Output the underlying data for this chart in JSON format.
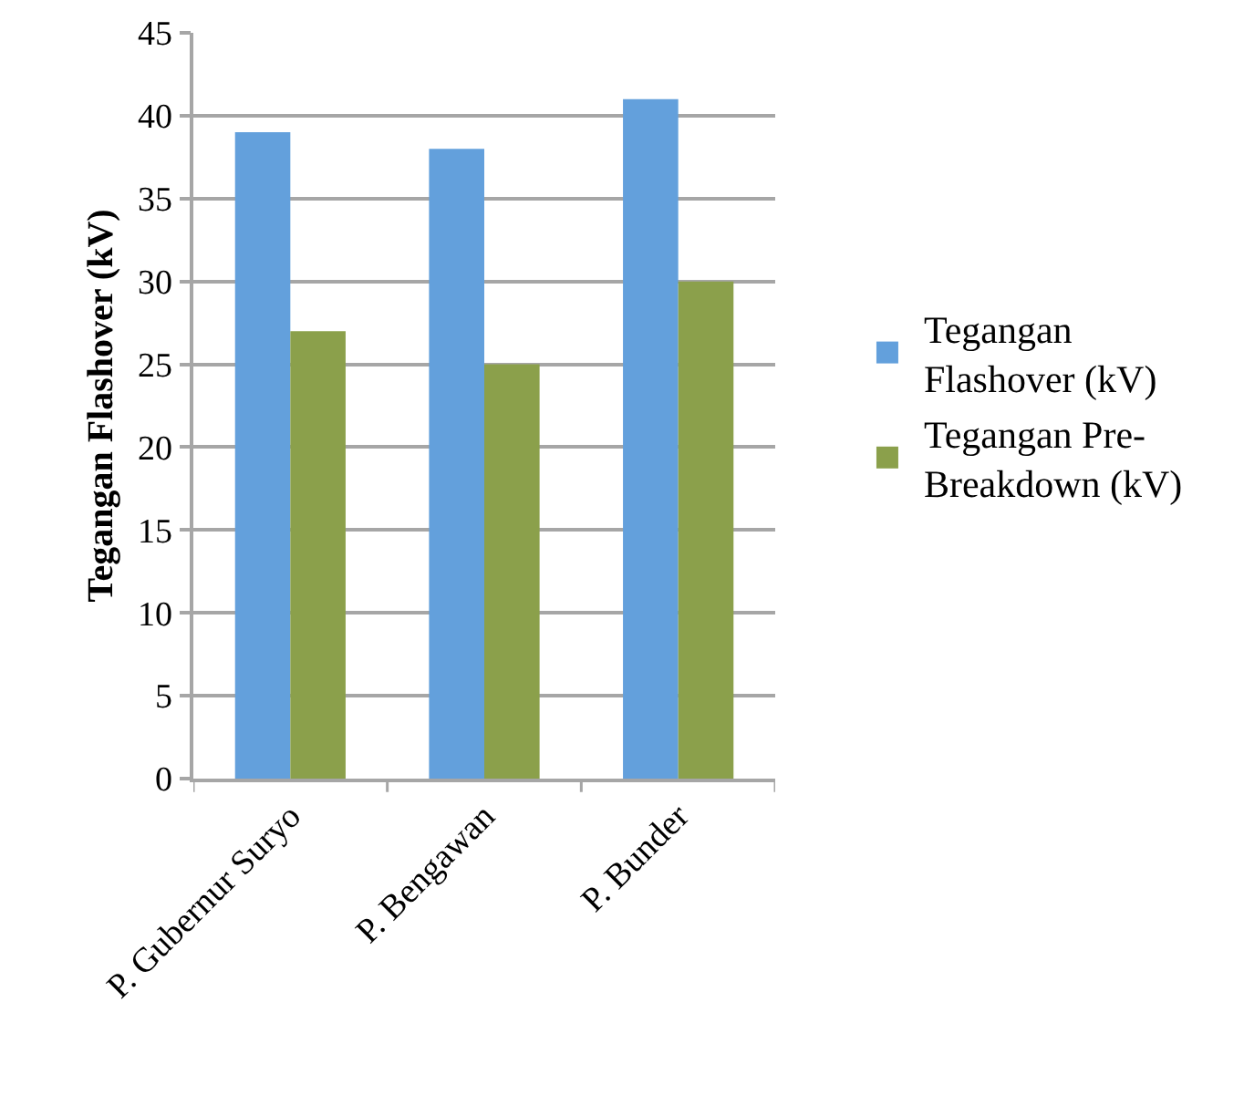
{
  "chart_data": {
    "type": "bar",
    "ylabel": "Tegangan Flashover (kV)",
    "categories": [
      "P. Gubernur Suryo",
      "P. Bengawan",
      "P. Bunder"
    ],
    "series": [
      {
        "name": "Tegangan Flashover (kV)",
        "color": "#63a0dc",
        "values": [
          39,
          38,
          41
        ]
      },
      {
        "name": "Tegangan Pre-Breakdown (kV)",
        "color": "#8ba04b",
        "values": [
          27,
          25,
          30
        ]
      }
    ],
    "ylim": [
      0,
      45
    ],
    "yticks": [
      0,
      5,
      10,
      15,
      20,
      25,
      30,
      35,
      40,
      45
    ],
    "grid": "y",
    "legend": "right"
  }
}
